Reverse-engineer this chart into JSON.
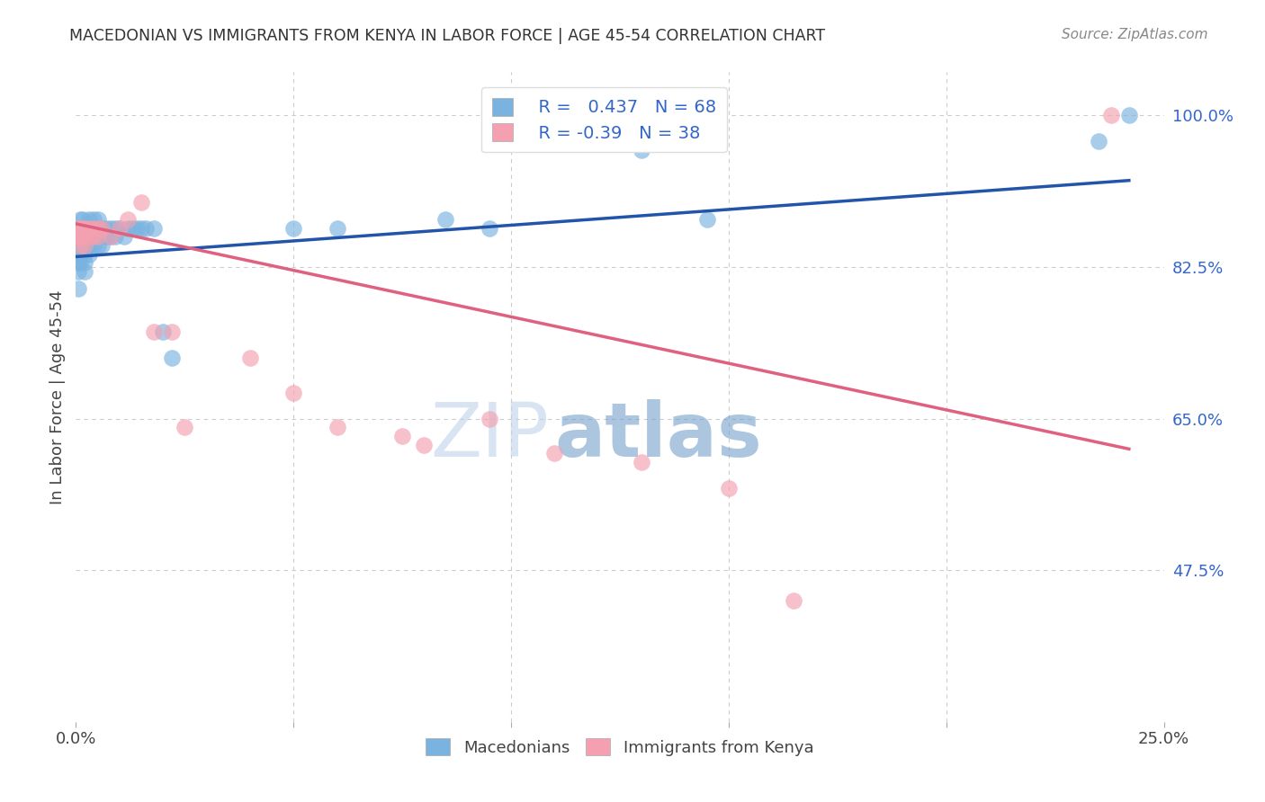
{
  "title": "MACEDONIAN VS IMMIGRANTS FROM KENYA IN LABOR FORCE | AGE 45-54 CORRELATION CHART",
  "source": "Source: ZipAtlas.com",
  "ylabel": "In Labor Force | Age 45-54",
  "xlim": [
    0.0,
    0.25
  ],
  "ylim": [
    0.3,
    1.05
  ],
  "xticks": [
    0.0,
    0.05,
    0.1,
    0.15,
    0.2,
    0.25
  ],
  "xticklabels": [
    "0.0%",
    "",
    "",
    "",
    "",
    "25.0%"
  ],
  "ytick_positions": [
    0.475,
    0.65,
    0.825,
    1.0
  ],
  "yticklabels_right": [
    "47.5%",
    "65.0%",
    "82.5%",
    "100.0%"
  ],
  "background_color": "#ffffff",
  "grid_color": "#cccccc",
  "mac_color": "#7ab3e0",
  "mac_line_color": "#2255aa",
  "ken_color": "#f4a0b0",
  "ken_line_color": "#e06080",
  "mac_R": 0.437,
  "mac_N": 68,
  "ken_R": -0.39,
  "ken_N": 38,
  "mac_x": [
    0.0005,
    0.0005,
    0.0005,
    0.0005,
    0.0005,
    0.0008,
    0.0008,
    0.0008,
    0.001,
    0.001,
    0.001,
    0.001,
    0.001,
    0.001,
    0.0012,
    0.0012,
    0.0015,
    0.0015,
    0.0015,
    0.0015,
    0.002,
    0.002,
    0.002,
    0.002,
    0.002,
    0.002,
    0.0025,
    0.0025,
    0.003,
    0.003,
    0.003,
    0.003,
    0.003,
    0.004,
    0.004,
    0.004,
    0.004,
    0.005,
    0.005,
    0.005,
    0.005,
    0.006,
    0.006,
    0.006,
    0.007,
    0.007,
    0.008,
    0.008,
    0.009,
    0.009,
    0.01,
    0.011,
    0.012,
    0.013,
    0.014,
    0.015,
    0.016,
    0.018,
    0.02,
    0.022,
    0.05,
    0.06,
    0.085,
    0.095,
    0.13,
    0.145,
    0.235,
    0.242
  ],
  "mac_y": [
    0.86,
    0.84,
    0.83,
    0.82,
    0.8,
    0.87,
    0.85,
    0.84,
    0.88,
    0.87,
    0.86,
    0.85,
    0.84,
    0.83,
    0.87,
    0.86,
    0.88,
    0.87,
    0.86,
    0.85,
    0.87,
    0.86,
    0.85,
    0.84,
    0.83,
    0.82,
    0.87,
    0.86,
    0.88,
    0.87,
    0.86,
    0.85,
    0.84,
    0.88,
    0.87,
    0.86,
    0.85,
    0.88,
    0.87,
    0.86,
    0.85,
    0.87,
    0.86,
    0.85,
    0.87,
    0.86,
    0.87,
    0.86,
    0.87,
    0.86,
    0.87,
    0.86,
    0.87,
    0.87,
    0.87,
    0.87,
    0.87,
    0.87,
    0.75,
    0.72,
    0.87,
    0.87,
    0.88,
    0.87,
    0.96,
    0.88,
    0.97,
    1.0
  ],
  "mac_trend_x": [
    0.0,
    0.242
  ],
  "mac_trend_y": [
    0.837,
    0.925
  ],
  "ken_x": [
    0.0005,
    0.0005,
    0.0008,
    0.0008,
    0.001,
    0.001,
    0.001,
    0.0012,
    0.0015,
    0.0015,
    0.002,
    0.002,
    0.002,
    0.003,
    0.003,
    0.004,
    0.004,
    0.005,
    0.005,
    0.006,
    0.008,
    0.01,
    0.012,
    0.015,
    0.018,
    0.022,
    0.025,
    0.04,
    0.05,
    0.06,
    0.075,
    0.08,
    0.095,
    0.11,
    0.13,
    0.15,
    0.165,
    0.238
  ],
  "ken_y": [
    0.87,
    0.86,
    0.87,
    0.86,
    0.87,
    0.86,
    0.85,
    0.86,
    0.87,
    0.86,
    0.87,
    0.86,
    0.85,
    0.87,
    0.86,
    0.87,
    0.86,
    0.87,
    0.86,
    0.87,
    0.86,
    0.87,
    0.88,
    0.9,
    0.75,
    0.75,
    0.64,
    0.72,
    0.68,
    0.64,
    0.63,
    0.62,
    0.65,
    0.61,
    0.6,
    0.57,
    0.44,
    1.0
  ],
  "ken_trend_x": [
    0.0,
    0.242
  ],
  "ken_trend_y": [
    0.875,
    0.615
  ],
  "watermark_zip_color": "#c8d8ee",
  "watermark_atlas_color": "#c8d8ee"
}
